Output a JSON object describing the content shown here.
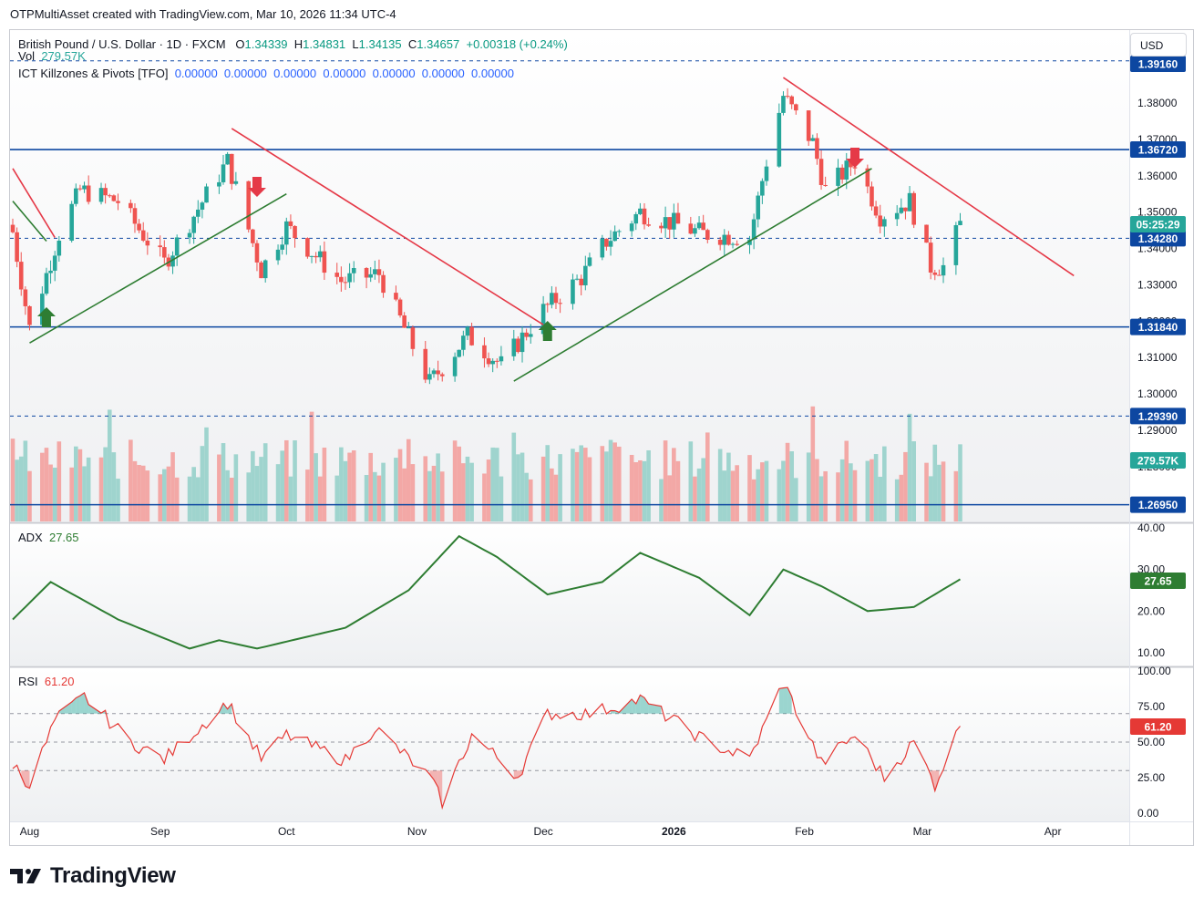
{
  "header": {
    "text": "OTPMultiAsset created with TradingView.com, Mar 10, 2026 11:34 UTC-4"
  },
  "currency_button": "USD",
  "legend": {
    "symbol": "British Pound / U.S. Dollar · 1D · FXCM",
    "open_label": "O",
    "open": "1.34339",
    "high_label": "H",
    "high": "1.34831",
    "low_label": "L",
    "low": "1.34135",
    "close_label": "C",
    "close": "1.34657",
    "change": "+0.00318 (+0.24%)",
    "vol_label": "Vol",
    "vol_value": "279.57K",
    "ict_label": "ICT Killzones & Pivots [TFO]",
    "ict_values": "0.00000  0.00000  0.00000  0.00000  0.00000  0.00000  0.00000"
  },
  "adx_legend": {
    "label": "ADX",
    "value": "27.65"
  },
  "rsi_legend": {
    "label": "RSI",
    "value": "61.20"
  },
  "footer": {
    "brand": "TradingView"
  },
  "colors": {
    "up": "#26a69a",
    "down": "#ef5350",
    "level": "#0d47a1",
    "adx": "#2e7d32",
    "rsi": "#e53935",
    "trend_up": "#2e7d32",
    "trend_down": "#e53947"
  },
  "chart_data": [
    {
      "type": "candlestick",
      "title": "British Pound / U.S. Dollar · 1D · FXCM",
      "x_tick_labels": [
        "Aug",
        "Sep",
        "Oct",
        "Nov",
        "Dec",
        "2026",
        "Feb",
        "Mar",
        "Apr"
      ],
      "y_tick_labels": [
        "1.38000",
        "1.37000",
        "1.36000",
        "1.35000",
        "1.34000",
        "1.33000",
        "1.32000",
        "1.31000",
        "1.30000",
        "1.29000",
        "1.28000"
      ],
      "ylim": [
        1.2695,
        1.3916
      ],
      "horizontal_levels": [
        {
          "label": "1.39160",
          "value": 1.3916,
          "style": "dashed"
        },
        {
          "label": "1.36720",
          "value": 1.3672,
          "style": "solid"
        },
        {
          "label": "1.34280",
          "value": 1.3428,
          "style": "dashed"
        },
        {
          "label": "1.31840",
          "value": 1.3184,
          "style": "solid"
        },
        {
          "label": "1.29390",
          "value": 1.2939,
          "style": "dashed"
        },
        {
          "label": "1.26950",
          "value": 1.2695,
          "style": "solid"
        }
      ],
      "price_labels": [
        {
          "label": "05:25:29",
          "kind": "countdown"
        },
        {
          "label": "279.57K",
          "kind": "volume"
        }
      ],
      "anchor_points": [
        {
          "date": "2025-07-28",
          "close": 1.3445
        },
        {
          "date": "2025-08-01",
          "close": 1.318
        },
        {
          "date": "2025-08-08",
          "close": 1.344
        },
        {
          "date": "2025-08-13",
          "close": 1.356
        },
        {
          "date": "2025-08-22",
          "close": 1.353
        },
        {
          "date": "2025-09-02",
          "close": 1.336
        },
        {
          "date": "2025-09-17",
          "close": 1.364
        },
        {
          "date": "2025-09-25",
          "close": 1.334
        },
        {
          "date": "2025-10-01",
          "close": 1.346
        },
        {
          "date": "2025-10-14",
          "close": 1.331
        },
        {
          "date": "2025-10-23",
          "close": 1.333
        },
        {
          "date": "2025-11-04",
          "close": 1.303
        },
        {
          "date": "2025-11-13",
          "close": 1.316
        },
        {
          "date": "2025-11-21",
          "close": 1.308
        },
        {
          "date": "2025-12-01",
          "close": 1.323
        },
        {
          "date": "2025-12-10",
          "close": 1.332
        },
        {
          "date": "2025-12-16",
          "close": 1.342
        },
        {
          "date": "2025-12-24",
          "close": 1.35
        },
        {
          "date": "2026-01-08",
          "close": 1.344
        },
        {
          "date": "2026-01-19",
          "close": 1.343
        },
        {
          "date": "2026-01-23",
          "close": 1.364
        },
        {
          "date": "2026-01-27",
          "close": 1.382
        },
        {
          "date": "2026-02-03",
          "close": 1.369
        },
        {
          "date": "2026-02-06",
          "close": 1.356
        },
        {
          "date": "2026-02-13",
          "close": 1.364
        },
        {
          "date": "2026-02-19",
          "close": 1.349
        },
        {
          "date": "2026-02-26",
          "close": 1.353
        },
        {
          "date": "2026-03-03",
          "close": 1.335
        },
        {
          "date": "2026-03-06",
          "close": 1.335
        },
        {
          "date": "2026-03-10",
          "close": 1.3466
        }
      ],
      "trendlines": [
        {
          "color": "green",
          "from": {
            "date": "2025-07-28",
            "price": 1.353
          },
          "to": {
            "date": "2025-08-05",
            "price": 1.342
          }
        },
        {
          "color": "red",
          "from": {
            "date": "2025-07-28",
            "price": 1.362
          },
          "to": {
            "date": "2025-08-07",
            "price": 1.343
          }
        },
        {
          "color": "green",
          "from": {
            "date": "2025-08-01",
            "price": 1.314
          },
          "to": {
            "date": "2025-10-01",
            "price": 1.355
          }
        },
        {
          "color": "red",
          "from": {
            "date": "2025-09-18",
            "price": 1.373
          },
          "to": {
            "date": "2025-12-01",
            "price": 1.319
          }
        },
        {
          "color": "green",
          "from": {
            "date": "2025-11-24",
            "price": 1.3035
          },
          "to": {
            "date": "2026-02-17",
            "price": 1.362
          }
        },
        {
          "color": "red",
          "from": {
            "date": "2026-01-27",
            "price": 1.387
          },
          "to": {
            "date": "2026-04-06",
            "price": 1.3325
          }
        }
      ],
      "markers": [
        {
          "date": "2025-08-05",
          "direction": "up"
        },
        {
          "date": "2025-09-24",
          "direction": "down"
        },
        {
          "date": "2025-12-02",
          "direction": "up"
        },
        {
          "date": "2026-02-13",
          "direction": "down"
        }
      ]
    },
    {
      "type": "bar",
      "title": "Vol",
      "last_value": "279.57K"
    },
    {
      "type": "line",
      "title": "ADX",
      "y_tick_labels": [
        "40.00",
        "30.00",
        "20.00",
        "10.00"
      ],
      "ylim": [
        5,
        42
      ],
      "last_value": 27.65,
      "anchor_points": [
        {
          "date": "2025-07-28",
          "value": 18
        },
        {
          "date": "2025-08-06",
          "value": 27
        },
        {
          "date": "2025-08-22",
          "value": 18
        },
        {
          "date": "2025-09-08",
          "value": 11
        },
        {
          "date": "2025-09-15",
          "value": 13
        },
        {
          "date": "2025-09-24",
          "value": 11
        },
        {
          "date": "2025-10-15",
          "value": 16
        },
        {
          "date": "2025-10-30",
          "value": 25
        },
        {
          "date": "2025-11-11",
          "value": 38
        },
        {
          "date": "2025-11-20",
          "value": 33
        },
        {
          "date": "2025-12-02",
          "value": 24
        },
        {
          "date": "2025-12-15",
          "value": 27
        },
        {
          "date": "2025-12-24",
          "value": 34
        },
        {
          "date": "2026-01-07",
          "value": 28
        },
        {
          "date": "2026-01-19",
          "value": 19
        },
        {
          "date": "2026-01-27",
          "value": 30
        },
        {
          "date": "2026-02-05",
          "value": 26
        },
        {
          "date": "2026-02-16",
          "value": 20
        },
        {
          "date": "2026-02-27",
          "value": 21
        },
        {
          "date": "2026-03-10",
          "value": 27.65
        }
      ]
    },
    {
      "type": "line",
      "title": "RSI",
      "y_tick_labels": [
        "100.00",
        "75.00",
        "50.00",
        "25.00",
        "0.00"
      ],
      "ylim": [
        0,
        100
      ],
      "bands": [
        70,
        50,
        30
      ],
      "last_value": 61.2,
      "anchor_points": [
        {
          "date": "2025-07-28",
          "value": 35
        },
        {
          "date": "2025-08-01",
          "value": 20
        },
        {
          "date": "2025-08-07",
          "value": 65
        },
        {
          "date": "2025-08-14",
          "value": 82
        },
        {
          "date": "2025-08-25",
          "value": 50
        },
        {
          "date": "2025-09-02",
          "value": 38
        },
        {
          "date": "2025-09-17",
          "value": 78
        },
        {
          "date": "2025-09-25",
          "value": 38
        },
        {
          "date": "2025-10-01",
          "value": 55
        },
        {
          "date": "2025-10-15",
          "value": 37
        },
        {
          "date": "2025-10-22",
          "value": 60
        },
        {
          "date": "2025-11-04",
          "value": 25
        },
        {
          "date": "2025-11-07",
          "value": 8
        },
        {
          "date": "2025-11-14",
          "value": 55
        },
        {
          "date": "2025-11-25",
          "value": 26
        },
        {
          "date": "2025-12-02",
          "value": 70
        },
        {
          "date": "2025-12-12",
          "value": 70
        },
        {
          "date": "2025-12-24",
          "value": 80
        },
        {
          "date": "2026-01-09",
          "value": 50
        },
        {
          "date": "2026-01-19",
          "value": 38
        },
        {
          "date": "2026-01-27",
          "value": 92
        },
        {
          "date": "2026-02-05",
          "value": 35
        },
        {
          "date": "2026-02-13",
          "value": 55
        },
        {
          "date": "2026-02-20",
          "value": 25
        },
        {
          "date": "2026-02-27",
          "value": 50
        },
        {
          "date": "2026-03-04",
          "value": 20
        },
        {
          "date": "2026-03-10",
          "value": 61.2
        }
      ]
    }
  ]
}
